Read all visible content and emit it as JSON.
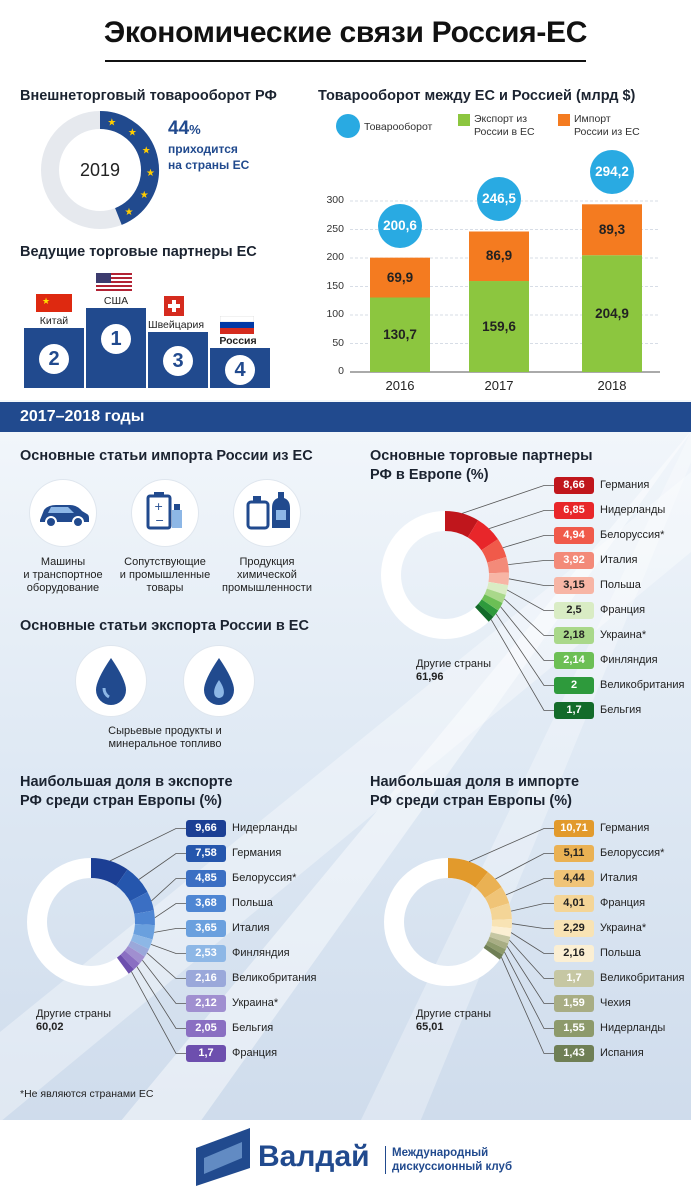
{
  "header": {
    "title": "Экономические связи Россия-ЕС"
  },
  "trade_share": {
    "title": "Внешнеторговый товарооборот РФ",
    "year": "2019",
    "percent": "44",
    "percent_sign": "%",
    "text1": "приходится",
    "text2": "на страны ЕС",
    "share": 0.44
  },
  "leaders": {
    "title": "Ведущие торговые партнеры ЕС",
    "items": [
      {
        "label": "Китай",
        "rank": "2"
      },
      {
        "label": "США",
        "rank": "1"
      },
      {
        "label": "Швейцария",
        "rank": "3"
      },
      {
        "label": "Россия",
        "rank": "4"
      }
    ]
  },
  "trade_chart": {
    "title": "Товарооборот между ЕС и Россией (млрд $)",
    "legend": {
      "turnover": "Товарооборот",
      "export_1": "Экспорт из",
      "export_2": "России в ЕС",
      "import_1": "Импорт",
      "import_2": "России из ЕС"
    },
    "colors": {
      "turnover": "#29aae2",
      "export": "#8cc63f",
      "import": "#f47b20"
    }
  },
  "chart_data": {
    "type": "bar",
    "stacked": true,
    "categories": [
      "2016",
      "2017",
      "2018"
    ],
    "series": [
      {
        "name": "Экспорт из России в ЕС",
        "values": [
          130.7,
          159.6,
          204.9
        ]
      },
      {
        "name": "Импорт России из ЕС",
        "values": [
          69.9,
          86.9,
          89.3
        ]
      }
    ],
    "totals": {
      "name": "Товарооборот",
      "values": [
        200.6,
        246.5,
        294.2
      ]
    },
    "labels": {
      "export": [
        "130,7",
        "159,6",
        "204,9"
      ],
      "import": [
        "69,9",
        "86,9",
        "89,3"
      ],
      "totals": [
        "200,6",
        "246,5",
        "294,2"
      ]
    },
    "yticks": [
      "0",
      "50",
      "100",
      "150",
      "200",
      "250",
      "300"
    ],
    "ylim": [
      0,
      300
    ]
  },
  "band": {
    "label": "2017–2018 годы"
  },
  "imports_items": {
    "title": "Основные статьи импорта России из ЕС",
    "items": [
      {
        "line1": "Машины",
        "line2": "и транспортное",
        "line3": "оборудование"
      },
      {
        "line1": "Сопутствующие",
        "line2": "и промышленные",
        "line3": "товары"
      },
      {
        "line1": "Продукция",
        "line2": "химической",
        "line3": "промышленности"
      }
    ]
  },
  "exports_items": {
    "title": "Основные статьи экспорта России в ЕС",
    "line1": "Сырьевые продукты и",
    "line2": "минеральное топливо"
  },
  "partners": {
    "title1": "Основные торговые партнеры",
    "title2": "РФ в Европе (%)",
    "other_label1": "Другие страны",
    "other_value": "61,96",
    "items": [
      {
        "value": "8,66",
        "name": "Германия",
        "v": 8.66,
        "color": "#c0161c"
      },
      {
        "value": "6,85",
        "name": "Нидерланды",
        "v": 6.85,
        "color": "#e8262a"
      },
      {
        "value": "4,94",
        "name": "Белоруссия*",
        "v": 4.94,
        "color": "#f05a4a"
      },
      {
        "value": "3,92",
        "name": "Италия",
        "v": 3.92,
        "color": "#f38a79"
      },
      {
        "value": "3,15",
        "name": "Польша",
        "v": 3.15,
        "color": "#f7b5a5"
      },
      {
        "value": "2,5",
        "name": "Франция",
        "v": 2.5,
        "color": "#d9ecc4"
      },
      {
        "value": "2,18",
        "name": "Украина*",
        "v": 2.18,
        "color": "#a9d88a"
      },
      {
        "value": "2,14",
        "name": "Финляндия",
        "v": 2.14,
        "color": "#6cbf55"
      },
      {
        "value": "2",
        "name": "Великобритания",
        "v": 2.0,
        "color": "#2e9a3c"
      },
      {
        "value": "1,7",
        "name": "Бельгия",
        "v": 1.7,
        "color": "#136b2a"
      }
    ]
  },
  "export_share": {
    "title1": "Наибольшая доля в экспорте",
    "title2": "РФ среди стран Европы (%)",
    "other_label1": "Другие страны",
    "other_value": "60,02",
    "items": [
      {
        "value": "9,66",
        "name": "Нидерланды",
        "v": 9.66,
        "color": "#1c3f94"
      },
      {
        "value": "7,58",
        "name": "Германия",
        "v": 7.58,
        "color": "#2556ad"
      },
      {
        "value": "4,85",
        "name": "Белоруссия*",
        "v": 4.85,
        "color": "#3b6fc3"
      },
      {
        "value": "3,68",
        "name": "Польша",
        "v": 3.68,
        "color": "#4e86d3"
      },
      {
        "value": "3,65",
        "name": "Италия",
        "v": 3.65,
        "color": "#6aa0de"
      },
      {
        "value": "2,53",
        "name": "Финляндия",
        "v": 2.53,
        "color": "#8db7e6"
      },
      {
        "value": "2,16",
        "name": "Великобритания",
        "v": 2.16,
        "color": "#9aa8da"
      },
      {
        "value": "2,12",
        "name": "Украина*",
        "v": 2.12,
        "color": "#a08fd0"
      },
      {
        "value": "2,05",
        "name": "Бельгия",
        "v": 2.05,
        "color": "#8a6fc2"
      },
      {
        "value": "1,7",
        "name": "Франция",
        "v": 1.7,
        "color": "#6d4fae"
      }
    ]
  },
  "import_share": {
    "title1": "Наибольшая доля в импорте",
    "title2": "РФ среди стран Европы (%)",
    "other_label1": "Другие страны",
    "other_value": "65,01",
    "items": [
      {
        "value": "10,71",
        "name": "Германия",
        "v": 10.71,
        "color": "#e29a2c"
      },
      {
        "value": "5,11",
        "name": "Белоруссия*",
        "v": 5.11,
        "color": "#eab153"
      },
      {
        "value": "4,44",
        "name": "Италия",
        "v": 4.44,
        "color": "#f0c477"
      },
      {
        "value": "4,01",
        "name": "Франция",
        "v": 4.01,
        "color": "#f4d597"
      },
      {
        "value": "2,29",
        "name": "Украина*",
        "v": 2.29,
        "color": "#f8e3b4"
      },
      {
        "value": "2,16",
        "name": "Польша",
        "v": 2.16,
        "color": "#fbefd3"
      },
      {
        "value": "1,7",
        "name": "Великобритания",
        "v": 1.7,
        "color": "#c6c7a3"
      },
      {
        "value": "1,59",
        "name": "Чехия",
        "v": 1.59,
        "color": "#a8ad84"
      },
      {
        "value": "1,55",
        "name": "Нидерланды",
        "v": 1.55,
        "color": "#8d9a6b"
      },
      {
        "value": "1,43",
        "name": "Испания",
        "v": 1.43,
        "color": "#6f7f55"
      }
    ]
  },
  "footnote": "*Не являются странами ЕС",
  "footer": {
    "brand": "Валдай",
    "sub1": "Международный",
    "sub2": "дискуссионный клуб"
  }
}
